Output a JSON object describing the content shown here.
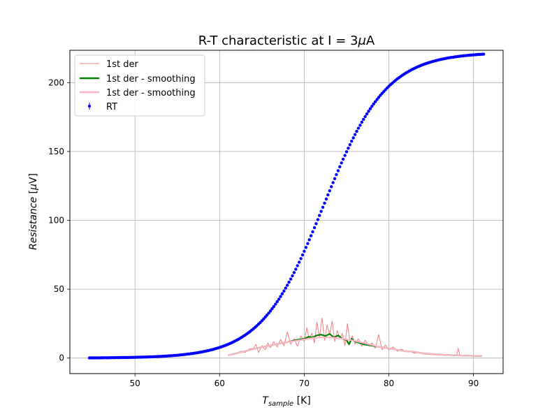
{
  "chart_data": {
    "type": "line",
    "title_prefix": "R-T characteristic at I = 3",
    "title_mu": "μ",
    "title_suffix": "A",
    "xlabel_main": "T",
    "xlabel_sub": "sample",
    "xlabel_unit": " [K]",
    "ylabel_main": "Resistance",
    "ylabel_unit_open": " [",
    "ylabel_mu": "μ",
    "ylabel_unit_close": "V]",
    "xlim": [
      42.3,
      93.5
    ],
    "ylim": [
      -11.3,
      223.5
    ],
    "xticks": [
      50,
      60,
      70,
      80,
      90
    ],
    "yticks": [
      0,
      50,
      100,
      150,
      200
    ],
    "grid": true,
    "legend_position": "top-left",
    "series": [
      {
        "name": "1st der",
        "kind": "line",
        "color": "#f08080",
        "x": [
          61.0,
          62.0,
          62.5,
          63.0,
          63.5,
          64.0,
          64.3,
          64.6,
          65.0,
          65.4,
          65.7,
          66.0,
          66.4,
          66.8,
          67.2,
          67.6,
          68.0,
          68.4,
          68.8,
          69.2,
          69.6,
          70.0,
          70.3,
          70.6,
          70.9,
          71.2,
          71.5,
          71.8,
          72.1,
          72.4,
          72.7,
          73.0,
          73.3,
          73.6,
          73.9,
          74.2,
          74.5,
          74.8,
          75.1,
          75.4,
          75.7,
          76.0,
          76.4,
          76.8,
          77.2,
          77.6,
          78.0,
          78.4,
          78.8,
          79.2,
          79.6,
          80.0,
          80.5,
          81.0,
          81.5,
          82.0,
          82.5,
          83.0,
          83.5,
          84.0,
          85.0,
          86.0,
          87.0,
          88.0,
          88.2,
          88.4,
          89.0,
          90.0,
          91.0
        ],
        "y": [
          2.0,
          3.5,
          5.0,
          4.0,
          6.5,
          7.0,
          10.0,
          4.0,
          9.0,
          6.0,
          11.0,
          7.5,
          12.0,
          8.0,
          13.5,
          9.0,
          19.0,
          10.0,
          14.0,
          8.5,
          16.0,
          12.0,
          22.0,
          14.0,
          18.0,
          11.0,
          26.0,
          15.0,
          29.0,
          13.0,
          24.0,
          17.0,
          27.0,
          12.0,
          20.0,
          14.0,
          18.0,
          9.0,
          25.0,
          12.0,
          16.0,
          10.0,
          14.0,
          8.5,
          13.0,
          9.0,
          11.0,
          7.0,
          17.0,
          6.0,
          9.5,
          6.0,
          8.0,
          5.0,
          6.5,
          4.5,
          5.0,
          3.5,
          4.0,
          3.0,
          2.5,
          2.2,
          2.0,
          1.8,
          7.0,
          1.6,
          1.5,
          1.4,
          1.3
        ]
      },
      {
        "name": "1st der - smoothing",
        "kind": "line",
        "color": "#008000",
        "x": [
          61.0,
          62.0,
          63.0,
          64.0,
          65.0,
          66.0,
          67.0,
          68.0,
          69.0,
          70.0,
          70.5,
          71.0,
          71.5,
          72.0,
          72.5,
          73.0,
          73.5,
          74.0,
          74.5,
          75.0,
          75.3,
          75.6,
          76.0,
          76.5,
          77.0,
          78.0,
          79.0,
          80.0,
          81.0,
          82.0,
          83.0,
          84.0,
          85.0,
          86.0,
          87.0,
          88.0,
          89.0,
          90.0,
          91.0
        ],
        "y": [
          2.0,
          3.5,
          5.0,
          6.5,
          8.0,
          9.0,
          10.5,
          11.5,
          13.0,
          14.0,
          15.5,
          15.0,
          16.5,
          17.0,
          16.0,
          17.5,
          15.0,
          16.5,
          14.0,
          13.0,
          10.0,
          14.0,
          12.0,
          11.0,
          10.0,
          9.0,
          8.0,
          7.0,
          6.0,
          5.0,
          4.5,
          3.5,
          3.0,
          2.5,
          2.2,
          2.0,
          1.8,
          1.6,
          1.5
        ]
      },
      {
        "name": "1st der - smoothing",
        "kind": "line",
        "color": "#ffb6c8",
        "x": [
          61.0,
          62.0,
          63.0,
          64.0,
          65.0,
          66.0,
          67.0,
          68.0,
          69.0,
          70.0,
          71.0,
          72.0,
          73.0,
          74.0,
          75.0,
          76.0,
          77.0,
          78.0,
          79.0,
          80.0,
          81.0,
          82.0,
          83.0,
          84.0,
          85.0,
          86.0,
          87.0,
          88.0,
          89.0,
          90.0,
          91.0
        ],
        "y": [
          2.0,
          3.5,
          5.0,
          6.5,
          8.0,
          9.0,
          10.5,
          11.5,
          12.5,
          13.5,
          14.5,
          15.0,
          15.0,
          14.5,
          13.5,
          12.5,
          11.0,
          9.5,
          8.0,
          7.0,
          6.0,
          5.0,
          4.5,
          3.5,
          3.0,
          2.5,
          2.2,
          2.0,
          1.8,
          1.6,
          1.5
        ]
      },
      {
        "name": "RT",
        "kind": "points",
        "color": "#0000ff",
        "model": {
          "x_start": 44.6,
          "x_end": 91.2,
          "step": 0.2,
          "baseline": 0,
          "amplitude": 222,
          "center": 72.3,
          "width": 3.7
        }
      }
    ]
  }
}
